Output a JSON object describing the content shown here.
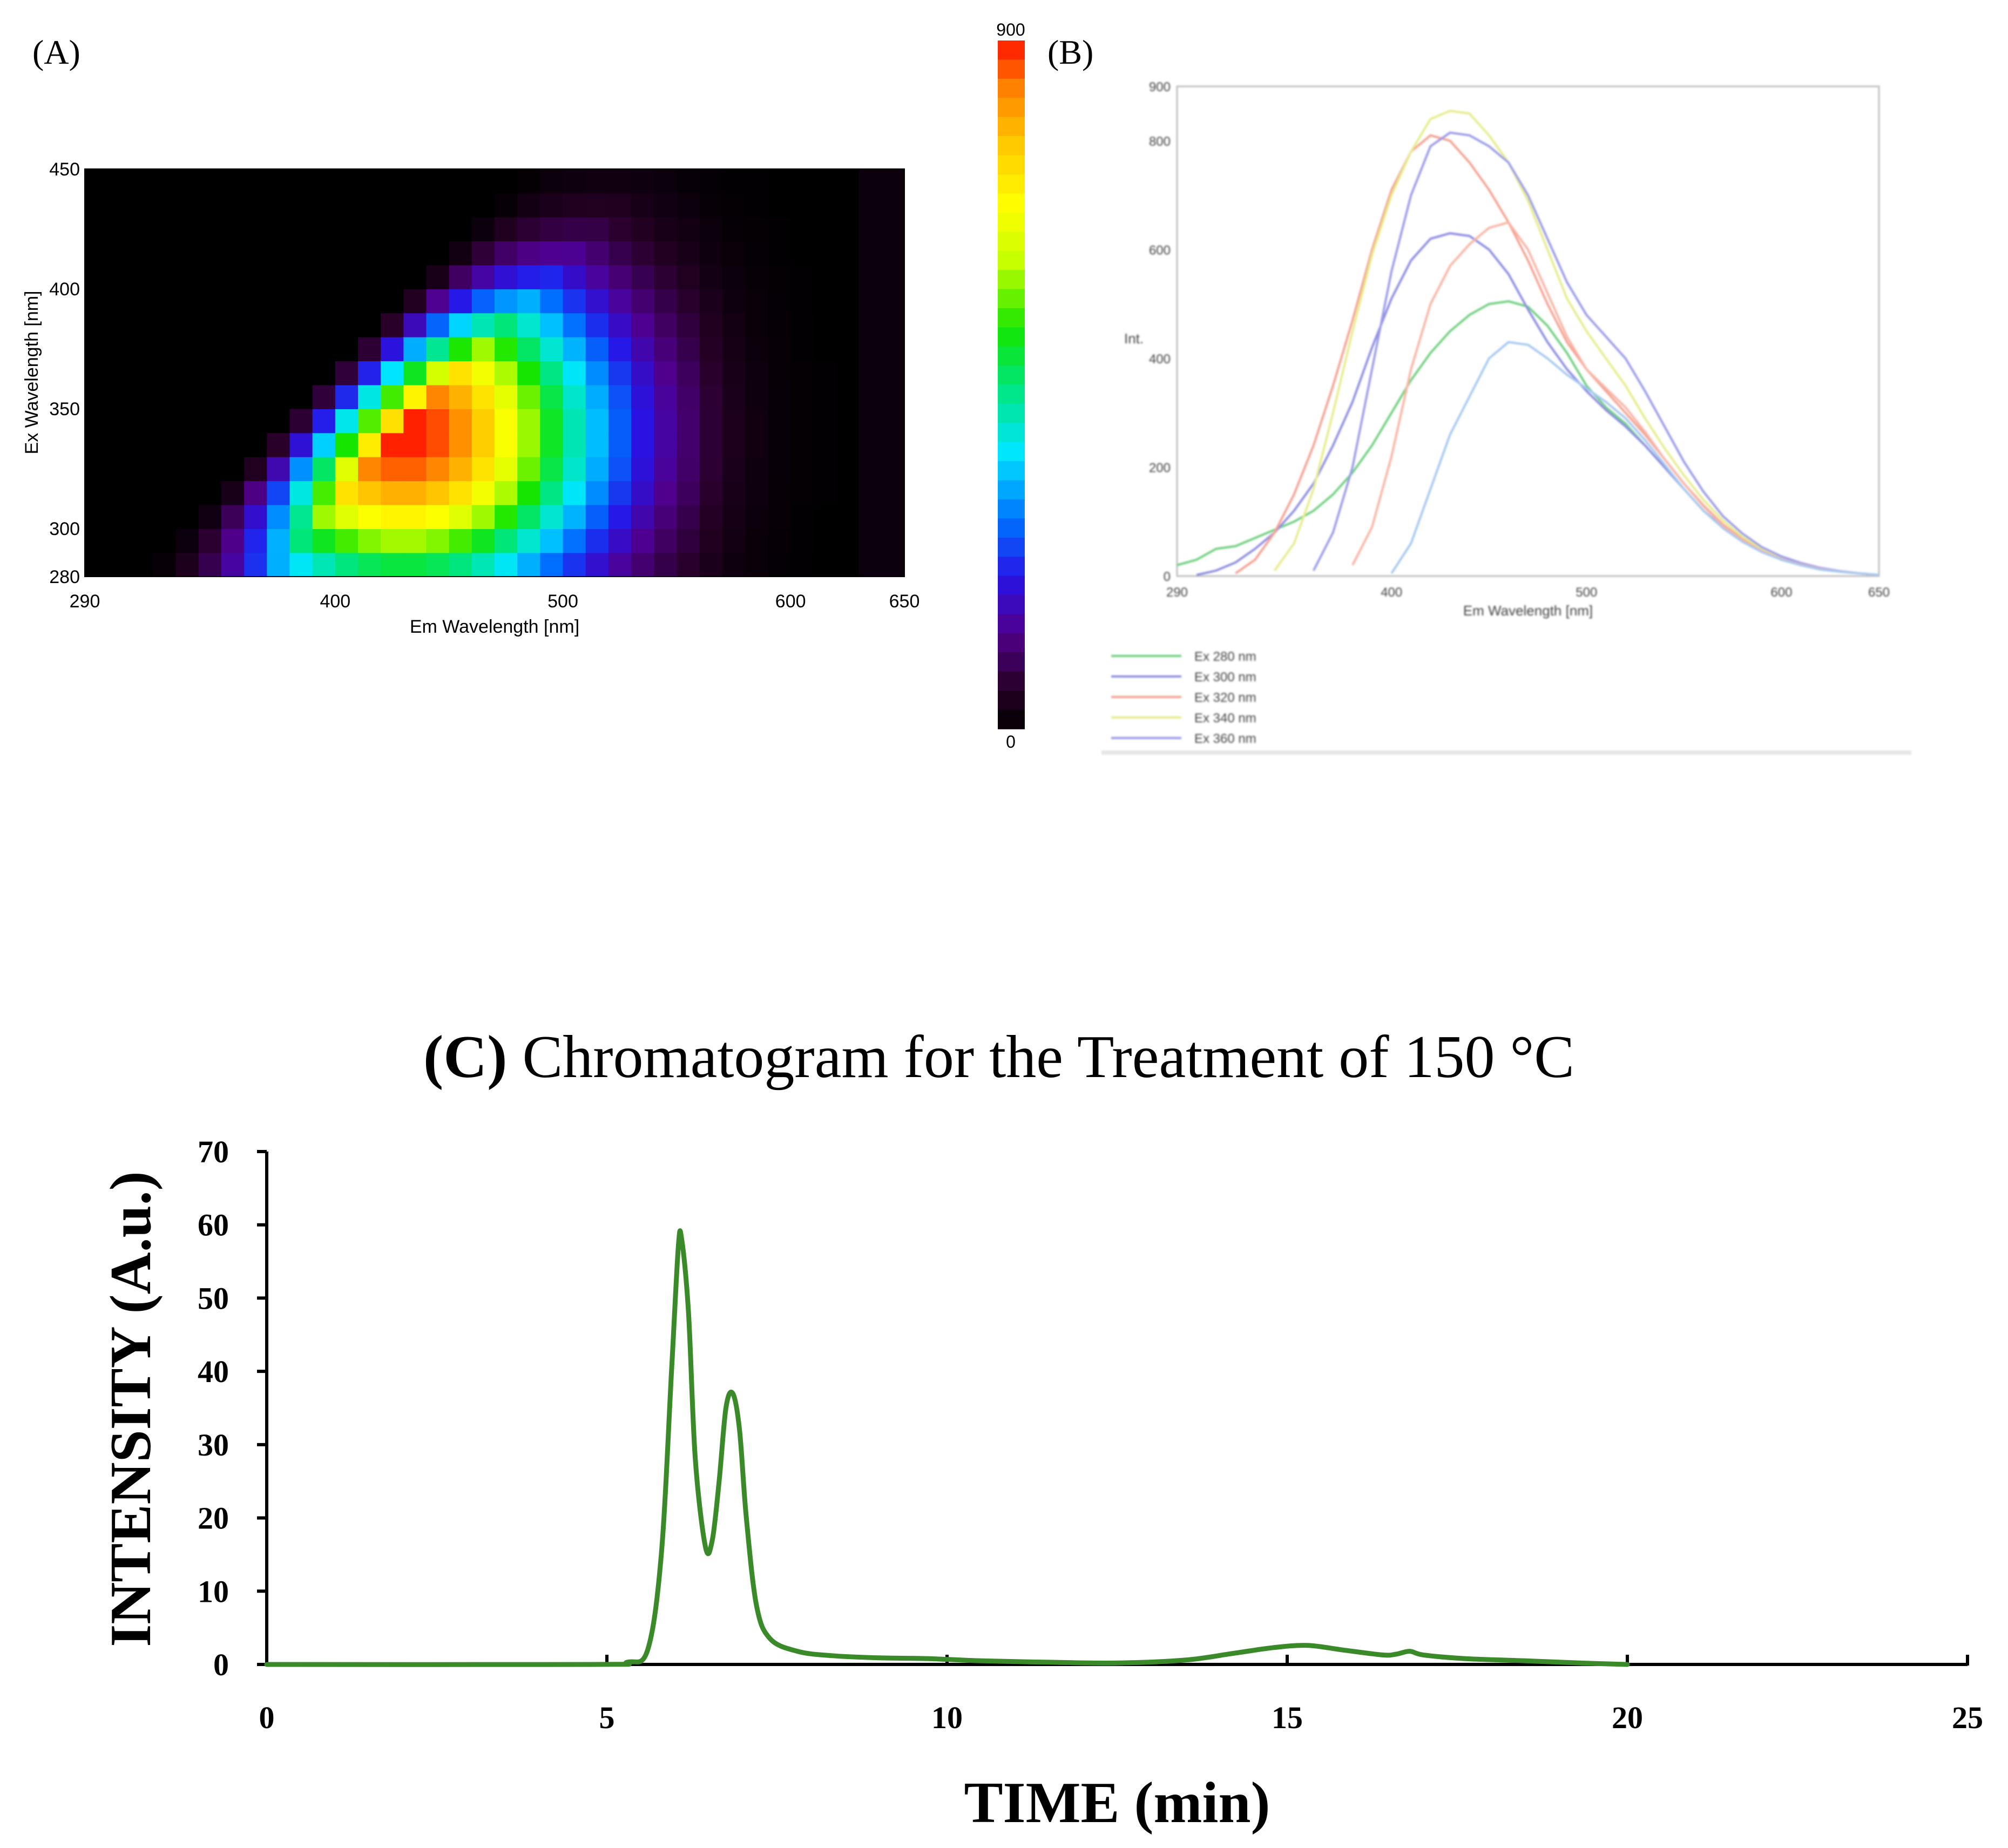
{
  "panel_labels": {
    "a": "(A)",
    "b": "(B)"
  },
  "chart_data": [
    {
      "id": "A",
      "type": "heatmap",
      "title": "",
      "xlabel": "Em Wavelength [nm]",
      "ylabel": "Ex Wavelength [nm]",
      "xlim": [
        290,
        650
      ],
      "ylim": [
        280,
        450
      ],
      "xticks": [
        290,
        400,
        500,
        600,
        650
      ],
      "yticks": [
        280,
        300,
        350,
        400,
        450
      ],
      "colorbar": {
        "min": 0,
        "max": 900,
        "min_label": "0",
        "max_label": "900"
      },
      "peak": {
        "em": 430,
        "ex": 340,
        "value": 900
      },
      "description_note": "EEM: intensity rises from ~0 in the scatter region (upper-left) to a maximum near Em 430 / Ex 340, decaying to near 0 beyond Em 600"
    },
    {
      "id": "B",
      "type": "line",
      "xlabel": "Em Wavelength [nm]",
      "ylabel": "Int.",
      "xlim": [
        290,
        650
      ],
      "ylim": [
        0,
        900
      ],
      "xticks": [
        290,
        400,
        500,
        600,
        650
      ],
      "yticks": [
        0,
        200,
        400,
        600,
        800,
        900
      ],
      "x": [
        290,
        300,
        310,
        320,
        330,
        340,
        350,
        360,
        370,
        380,
        390,
        400,
        410,
        420,
        430,
        440,
        450,
        460,
        470,
        480,
        490,
        500,
        510,
        520,
        530,
        540,
        550,
        560,
        570,
        580,
        590,
        600,
        610,
        620,
        630,
        640,
        650
      ],
      "series": [
        {
          "name": "Ex 280 nm",
          "color": "#6fcf7f",
          "values": [
            20,
            30,
            50,
            55,
            70,
            85,
            100,
            120,
            150,
            190,
            240,
            300,
            360,
            410,
            450,
            480,
            500,
            505,
            495,
            460,
            410,
            350,
            310,
            280,
            240,
            200,
            160,
            120,
            90,
            65,
            45,
            30,
            20,
            12,
            8,
            5,
            2
          ]
        },
        {
          "name": "Ex 300 nm",
          "color": "#8c8ce0",
          "values": [
            null,
            2,
            10,
            25,
            50,
            80,
            120,
            170,
            240,
            320,
            420,
            510,
            580,
            620,
            630,
            625,
            600,
            555,
            490,
            430,
            380,
            340,
            305,
            275,
            240,
            200,
            160,
            120,
            90,
            65,
            45,
            30,
            20,
            12,
            8,
            5,
            2
          ]
        },
        {
          "name": "Ex 320 nm",
          "color": "#f4a090",
          "values": [
            null,
            null,
            null,
            5,
            30,
            80,
            150,
            240,
            350,
            470,
            600,
            710,
            780,
            810,
            800,
            760,
            710,
            650,
            580,
            500,
            430,
            380,
            340,
            300,
            260,
            215,
            170,
            130,
            95,
            68,
            47,
            32,
            22,
            13,
            8,
            5,
            2
          ]
        },
        {
          "name": "Ex 340 nm",
          "color": "#e6ec8a",
          "values": [
            null,
            null,
            null,
            null,
            null,
            10,
            60,
            160,
            300,
            450,
            590,
            700,
            780,
            840,
            855,
            850,
            810,
            760,
            690,
            600,
            510,
            450,
            400,
            350,
            290,
            235,
            185,
            140,
            102,
            72,
            50,
            34,
            23,
            14,
            9,
            5,
            2
          ]
        },
        {
          "name": "Ex 360 nm",
          "color": "#9a9ae6",
          "values": [
            null,
            null,
            null,
            null,
            null,
            null,
            null,
            10,
            80,
            200,
            380,
            560,
            700,
            790,
            815,
            810,
            790,
            760,
            700,
            620,
            540,
            480,
            440,
            400,
            340,
            275,
            210,
            155,
            110,
            78,
            53,
            36,
            24,
            15,
            9,
            5,
            2
          ]
        }
      ],
      "extra_series_note": "two additional faint curves (peaks ~650 near Em 460 and ~430 near Em 465) are drawn unlabeled",
      "extra_series": [
        {
          "color": "#f8b3a3",
          "values": [
            null,
            null,
            null,
            null,
            null,
            null,
            null,
            null,
            null,
            20,
            90,
            220,
            380,
            500,
            570,
            610,
            640,
            650,
            600,
            520,
            440,
            380,
            345,
            310,
            265,
            215,
            170,
            128,
            93,
            66,
            46,
            31,
            21,
            13,
            8,
            5,
            2
          ]
        },
        {
          "color": "#a5c8ef",
          "values": [
            null,
            null,
            null,
            null,
            null,
            null,
            null,
            null,
            null,
            null,
            null,
            5,
            60,
            160,
            260,
            330,
            400,
            430,
            425,
            400,
            370,
            345,
            320,
            290,
            250,
            205,
            160,
            120,
            88,
            63,
            44,
            30,
            20,
            12,
            8,
            5,
            2
          ]
        }
      ]
    },
    {
      "id": "C",
      "type": "line",
      "title_bold": "(C)",
      "title_rest": "Chromatogram for the Treatment of 150 °C",
      "xlabel": "TIME (min)",
      "ylabel": "INTENSITY (A.u.)",
      "xlim": [
        0,
        25
      ],
      "ylim": [
        0,
        70
      ],
      "xticks": [
        0,
        5,
        10,
        15,
        20,
        25
      ],
      "yticks": [
        0,
        10,
        20,
        30,
        40,
        50,
        60,
        70
      ],
      "series": [
        {
          "name": "Chromatogram 150 °C",
          "color": "#3a8a2a",
          "x": [
            0,
            4.8,
            5.3,
            5.6,
            5.8,
            5.95,
            6.05,
            6.1,
            6.2,
            6.3,
            6.45,
            6.55,
            6.65,
            6.75,
            6.85,
            6.95,
            7.05,
            7.2,
            7.4,
            7.8,
            8.3,
            9.0,
            9.7,
            10.5,
            11.5,
            12.5,
            13.5,
            14.2,
            14.8,
            15.3,
            15.8,
            16.4,
            16.6,
            16.8,
            17.0,
            17.6,
            18.5,
            19.3,
            20.0
          ],
          "y": [
            0,
            0,
            0.3,
            2,
            15,
            40,
            57,
            58,
            48,
            28,
            16,
            17,
            25,
            35,
            37,
            32,
            20,
            8,
            3.5,
            1.8,
            1.2,
            0.9,
            0.8,
            0.5,
            0.3,
            0.2,
            0.6,
            1.5,
            2.3,
            2.6,
            2.0,
            1.3,
            1.4,
            1.8,
            1.3,
            0.8,
            0.5,
            0.2,
            0
          ]
        }
      ]
    }
  ],
  "colors": {
    "line_c": "#3a8a2a",
    "axis": "#000000"
  }
}
